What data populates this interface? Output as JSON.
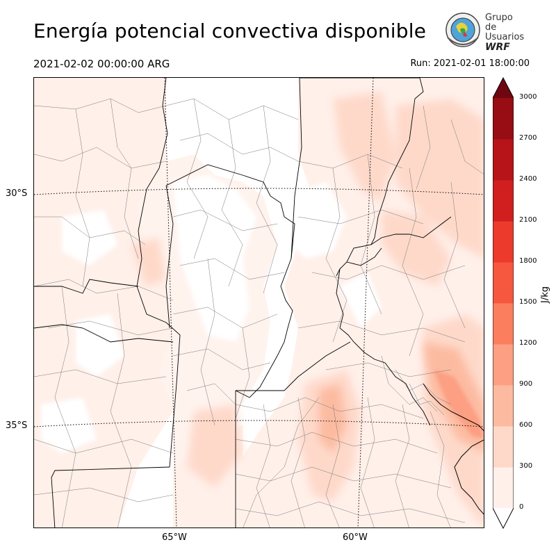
{
  "header": {
    "title": "Energía potencial convectiva disponible",
    "valid_time": "2021-02-02 00:00:00 ARG",
    "run_time": "Run: 2021-02-01 18:00:00"
  },
  "logo": {
    "line1": "Grupo de",
    "line2": "Usuarios",
    "line3": "WRF"
  },
  "map": {
    "lat_labels": [
      "30°S",
      "35°S"
    ],
    "lon_labels": [
      "65°W",
      "60°W"
    ]
  },
  "colorbar": {
    "unit": "J/kg",
    "ticks": [
      "0",
      "300",
      "600",
      "900",
      "1200",
      "1500",
      "1800",
      "2100",
      "2400",
      "2700",
      "3000"
    ],
    "colors": [
      "#fff0ea",
      "#fed9ca",
      "#fcbba1",
      "#fc9f82",
      "#fb7e5e",
      "#f6573f",
      "#ec3a2c",
      "#d11f1f",
      "#b71419",
      "#980c13",
      "#6f0711"
    ]
  }
}
